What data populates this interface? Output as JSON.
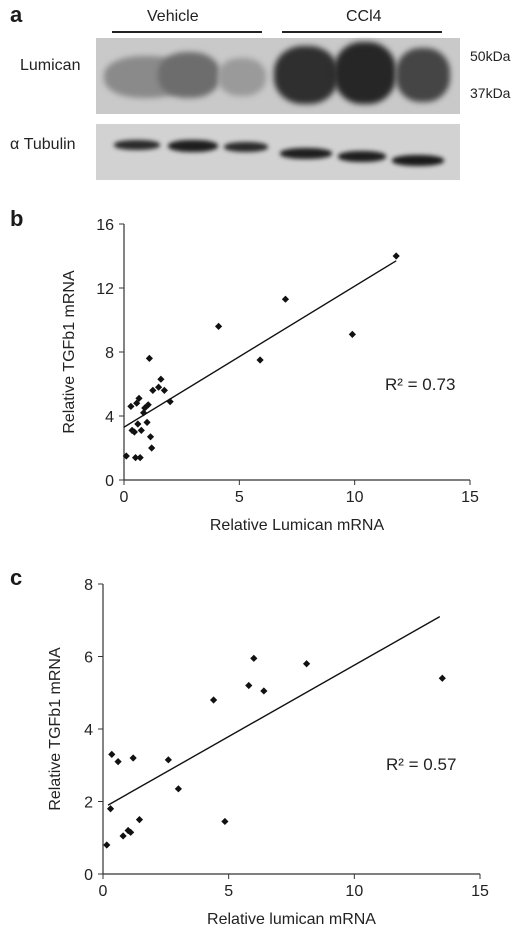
{
  "panel_a": {
    "letter": "a",
    "group1": "Vehicle",
    "group2": "CCl4",
    "row1": "Lumican",
    "row2": "α Tubulin",
    "marker1": "50kDa",
    "marker2": "37kDa"
  },
  "chart_data": [
    {
      "type": "scatter",
      "panel": "b",
      "xlabel": "Relative Lumican mRNA",
      "ylabel": "Relative TGFb1 mRNA",
      "xlim": [
        0,
        15
      ],
      "ylim": [
        0,
        16
      ],
      "xticks": [
        "0",
        "5",
        "10",
        "15"
      ],
      "yticks": [
        "0",
        "4",
        "8",
        "12",
        "16"
      ],
      "annotation": "R² = 0.73",
      "points": [
        [
          0.1,
          1.5
        ],
        [
          0.3,
          4.6
        ],
        [
          0.35,
          3.1
        ],
        [
          0.45,
          3.0
        ],
        [
          0.5,
          1.4
        ],
        [
          0.55,
          4.8
        ],
        [
          0.6,
          3.5
        ],
        [
          0.65,
          5.1
        ],
        [
          0.7,
          1.4
        ],
        [
          0.75,
          3.1
        ],
        [
          0.85,
          4.2
        ],
        [
          0.9,
          4.5
        ],
        [
          1.0,
          3.6
        ],
        [
          1.05,
          4.7
        ],
        [
          1.1,
          7.6
        ],
        [
          1.15,
          2.7
        ],
        [
          1.2,
          2.0
        ],
        [
          1.25,
          5.6
        ],
        [
          1.5,
          5.8
        ],
        [
          1.6,
          6.3
        ],
        [
          1.75,
          5.6
        ],
        [
          2.0,
          4.9
        ],
        [
          4.1,
          9.6
        ],
        [
          5.9,
          7.5
        ],
        [
          7.0,
          11.3
        ],
        [
          9.9,
          9.1
        ],
        [
          11.8,
          14.0
        ]
      ],
      "trendline": [
        [
          0,
          3.3
        ],
        [
          11.8,
          13.7
        ]
      ]
    },
    {
      "type": "scatter",
      "panel": "c",
      "xlabel": "Relative lumican mRNA",
      "ylabel": "Relative TGFb1 mRNA",
      "xlim": [
        0,
        15
      ],
      "ylim": [
        0,
        8
      ],
      "xticks": [
        "0",
        "5",
        "10",
        "15"
      ],
      "yticks": [
        "0",
        "2",
        "4",
        "6",
        "8"
      ],
      "annotation": "R² = 0.57",
      "points": [
        [
          0.15,
          0.8
        ],
        [
          0.3,
          1.8
        ],
        [
          0.35,
          3.3
        ],
        [
          0.6,
          3.1
        ],
        [
          0.8,
          1.05
        ],
        [
          1.0,
          1.2
        ],
        [
          1.1,
          1.15
        ],
        [
          1.2,
          3.2
        ],
        [
          1.45,
          1.5
        ],
        [
          2.6,
          3.15
        ],
        [
          3.0,
          2.35
        ],
        [
          4.4,
          4.8
        ],
        [
          4.85,
          1.45
        ],
        [
          5.8,
          5.2
        ],
        [
          6.0,
          5.95
        ],
        [
          6.4,
          5.05
        ],
        [
          8.1,
          5.8
        ],
        [
          13.5,
          5.4
        ]
      ],
      "trendline": [
        [
          0.2,
          1.9
        ],
        [
          13.4,
          7.1
        ]
      ]
    }
  ]
}
